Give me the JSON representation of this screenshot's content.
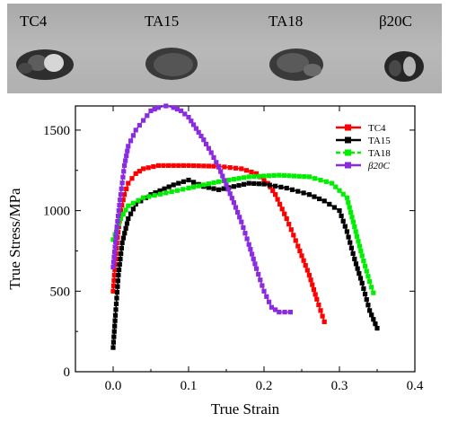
{
  "photo": {
    "samples": [
      {
        "label": "TC4"
      },
      {
        "label": "TA15"
      },
      {
        "label": "TA18"
      },
      {
        "label": "β20C"
      }
    ]
  },
  "chart_data": {
    "type": "line",
    "xlabel": "True Strain",
    "ylabel": "True Stress/MPa",
    "xlim": [
      -0.05,
      0.4
    ],
    "ylim": [
      0,
      1650
    ],
    "xticks": [
      0.0,
      0.1,
      0.2,
      0.3,
      0.4
    ],
    "xtick_labels": [
      "0.0",
      "0.1",
      "0.2",
      "0.3",
      "0.4"
    ],
    "yticks": [
      0,
      500,
      1000,
      1500
    ],
    "ytick_labels": [
      "0",
      "500",
      "1000",
      "1500"
    ],
    "grid": false,
    "legend_position": "top-right",
    "series": [
      {
        "name": "TC4",
        "color": "#ff0000",
        "marker": "square",
        "points": [
          [
            0.0,
            500
          ],
          [
            0.005,
            800
          ],
          [
            0.01,
            1000
          ],
          [
            0.015,
            1100
          ],
          [
            0.02,
            1170
          ],
          [
            0.03,
            1230
          ],
          [
            0.04,
            1260
          ],
          [
            0.06,
            1280
          ],
          [
            0.1,
            1280
          ],
          [
            0.14,
            1275
          ],
          [
            0.17,
            1260
          ],
          [
            0.19,
            1230
          ],
          [
            0.205,
            1170
          ],
          [
            0.215,
            1100
          ],
          [
            0.23,
            950
          ],
          [
            0.245,
            780
          ],
          [
            0.26,
            600
          ],
          [
            0.27,
            450
          ],
          [
            0.28,
            310
          ]
        ]
      },
      {
        "name": "TA15",
        "color": "#000000",
        "marker": "square",
        "points": [
          [
            0.0,
            150
          ],
          [
            0.003,
            350
          ],
          [
            0.007,
            600
          ],
          [
            0.012,
            800
          ],
          [
            0.02,
            950
          ],
          [
            0.03,
            1040
          ],
          [
            0.05,
            1100
          ],
          [
            0.08,
            1160
          ],
          [
            0.1,
            1190
          ],
          [
            0.12,
            1150
          ],
          [
            0.14,
            1130
          ],
          [
            0.16,
            1150
          ],
          [
            0.18,
            1170
          ],
          [
            0.2,
            1165
          ],
          [
            0.23,
            1140
          ],
          [
            0.26,
            1100
          ],
          [
            0.28,
            1060
          ],
          [
            0.3,
            1000
          ],
          [
            0.31,
            870
          ],
          [
            0.32,
            700
          ],
          [
            0.33,
            550
          ],
          [
            0.34,
            380
          ],
          [
            0.35,
            270
          ]
        ]
      },
      {
        "name": "TA18",
        "color": "#00ee00",
        "marker": "square",
        "points": [
          [
            0.0,
            820
          ],
          [
            0.01,
            950
          ],
          [
            0.02,
            1030
          ],
          [
            0.04,
            1080
          ],
          [
            0.07,
            1110
          ],
          [
            0.1,
            1140
          ],
          [
            0.14,
            1180
          ],
          [
            0.18,
            1210
          ],
          [
            0.22,
            1220
          ],
          [
            0.26,
            1210
          ],
          [
            0.29,
            1170
          ],
          [
            0.31,
            1080
          ],
          [
            0.32,
            900
          ],
          [
            0.33,
            720
          ],
          [
            0.34,
            560
          ],
          [
            0.345,
            490
          ]
        ]
      },
      {
        "name": "β20C",
        "color": "#8a2be2",
        "marker": "square",
        "points": [
          [
            0.0,
            650
          ],
          [
            0.005,
            900
          ],
          [
            0.01,
            1100
          ],
          [
            0.015,
            1280
          ],
          [
            0.02,
            1400
          ],
          [
            0.03,
            1500
          ],
          [
            0.04,
            1560
          ],
          [
            0.05,
            1620
          ],
          [
            0.06,
            1640
          ],
          [
            0.07,
            1650
          ],
          [
            0.08,
            1640
          ],
          [
            0.09,
            1620
          ],
          [
            0.1,
            1580
          ],
          [
            0.11,
            1510
          ],
          [
            0.12,
            1440
          ],
          [
            0.13,
            1360
          ],
          [
            0.14,
            1270
          ],
          [
            0.15,
            1160
          ],
          [
            0.16,
            1050
          ],
          [
            0.17,
            930
          ],
          [
            0.18,
            790
          ],
          [
            0.19,
            640
          ],
          [
            0.2,
            500
          ],
          [
            0.21,
            400
          ],
          [
            0.22,
            370
          ],
          [
            0.235,
            370
          ]
        ]
      }
    ]
  }
}
